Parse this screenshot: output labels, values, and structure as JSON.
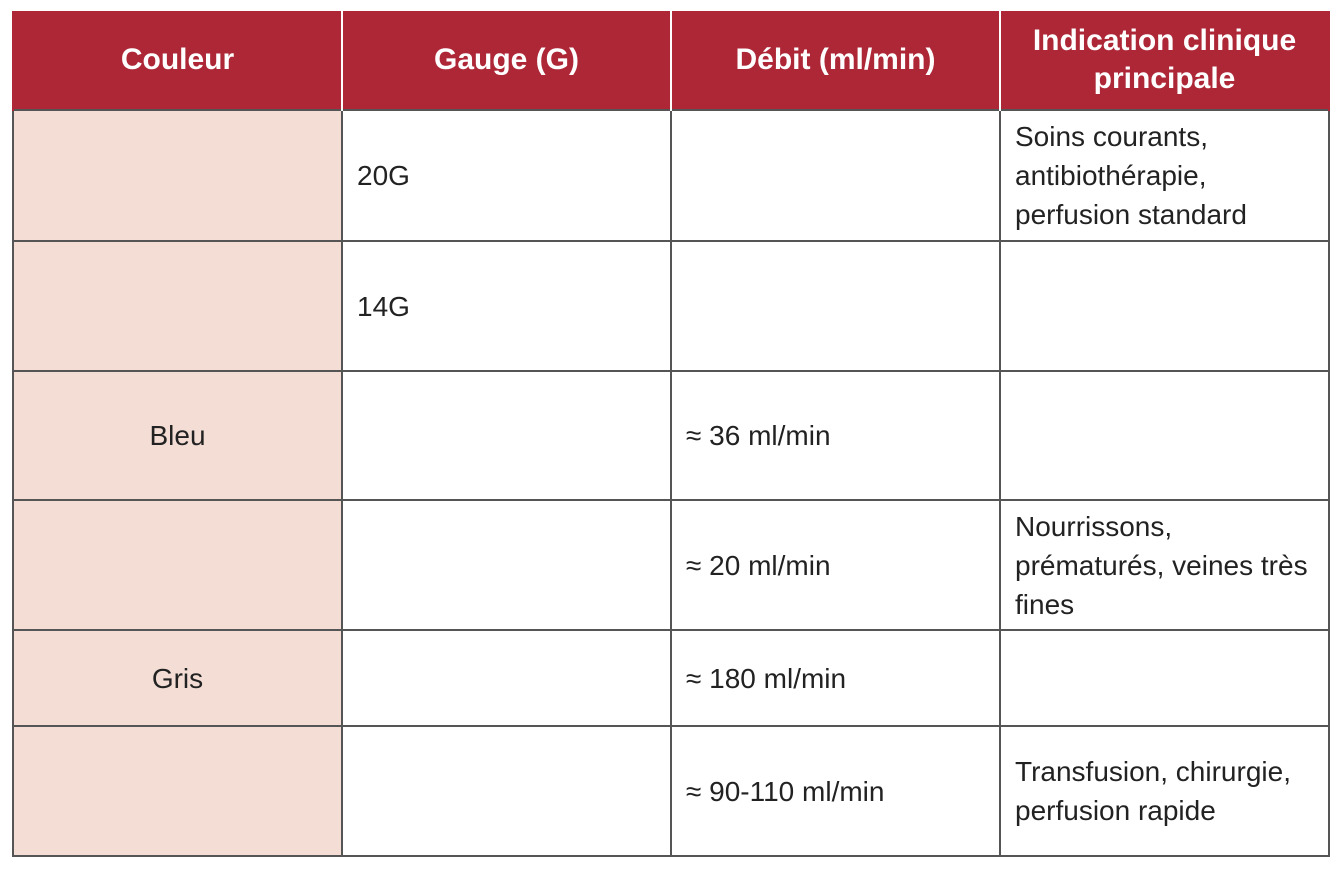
{
  "table": {
    "header": [
      "Couleur",
      "Gauge (G)",
      "Débit (ml/min)",
      "Indication clinique principale"
    ],
    "rows": [
      [
        null,
        "20G",
        null,
        "Soins courants, antibiothérapie, perfusion standard"
      ],
      [
        null,
        "14G",
        null,
        null
      ],
      [
        "Bleu",
        null,
        "≈ 36 ml/min",
        null
      ],
      [
        null,
        null,
        "≈ 20 ml/min",
        "Nourrissons, prématurés, veines très fines"
      ],
      [
        "Gris",
        null,
        "≈ 180 ml/min",
        null
      ],
      [
        null,
        null,
        "≈ 90-110 ml/min",
        "Transfusion, chirurgie, perfusion rapide"
      ]
    ]
  }
}
